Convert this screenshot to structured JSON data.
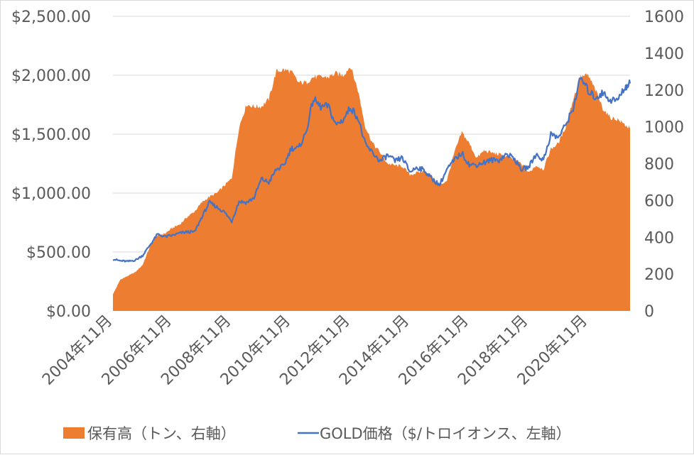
{
  "chart_data": {
    "type": "area+line",
    "title": "",
    "xlabel": "",
    "ylabel": "",
    "x_tick_labels": [
      "2004年11月",
      "2006年11月",
      "2008年11月",
      "2010年11月",
      "2012年11月",
      "2014年11月",
      "2016年11月",
      "2018年11月",
      "2020年11月"
    ],
    "x_range": [
      "2004-11",
      "2022-04"
    ],
    "left_axis": {
      "min": 0,
      "max": 2500,
      "ticks": [
        0,
        500,
        1000,
        1500,
        2000,
        2500
      ],
      "tick_labels": [
        "$0.00",
        "$500.00",
        "$1,000.00",
        "$1,500.00",
        "$2,000.00",
        "$2,500.00"
      ]
    },
    "right_axis": {
      "min": 0,
      "max": 1600,
      "ticks": [
        0,
        200,
        400,
        600,
        800,
        1000,
        1200,
        1400,
        1600
      ],
      "tick_labels": [
        "0",
        "200",
        "400",
        "600",
        "800",
        "1000",
        "1200",
        "1400",
        "1600"
      ]
    },
    "grid": "horizontal",
    "legend_position": "bottom",
    "colors": {
      "holdings": "#ED7D31",
      "gold": "#4472C4",
      "grid": "#d9d9d9",
      "text": "#595959"
    },
    "series": [
      {
        "name": "保有高（トン、右軸）",
        "axis": "right",
        "kind": "area",
        "x": [
          "2004-11",
          "2005-02",
          "2005-05",
          "2005-08",
          "2005-11",
          "2006-02",
          "2006-05",
          "2006-08",
          "2006-11",
          "2007-02",
          "2007-05",
          "2007-08",
          "2007-11",
          "2008-02",
          "2008-05",
          "2008-08",
          "2008-11",
          "2009-02",
          "2009-05",
          "2009-08",
          "2009-11",
          "2010-02",
          "2010-05",
          "2010-08",
          "2010-11",
          "2011-02",
          "2011-05",
          "2011-08",
          "2011-11",
          "2012-02",
          "2012-05",
          "2012-08",
          "2012-11",
          "2013-02",
          "2013-05",
          "2013-08",
          "2013-11",
          "2014-02",
          "2014-05",
          "2014-08",
          "2014-11",
          "2015-02",
          "2015-05",
          "2015-08",
          "2015-11",
          "2016-02",
          "2016-05",
          "2016-08",
          "2016-11",
          "2017-02",
          "2017-05",
          "2017-08",
          "2017-11",
          "2018-02",
          "2018-05",
          "2018-08",
          "2018-11",
          "2019-02",
          "2019-05",
          "2019-08",
          "2019-11",
          "2020-02",
          "2020-05",
          "2020-08",
          "2020-11",
          "2021-02",
          "2021-05",
          "2021-08",
          "2021-11",
          "2022-02",
          "2022-04"
        ],
        "values": [
          90,
          170,
          190,
          210,
          250,
          350,
          410,
          420,
          450,
          470,
          510,
          540,
          590,
          620,
          640,
          680,
          720,
          1000,
          1120,
          1110,
          1110,
          1150,
          1300,
          1310,
          1300,
          1240,
          1240,
          1270,
          1270,
          1270,
          1290,
          1280,
          1330,
          1200,
          1000,
          910,
          860,
          800,
          790,
          785,
          740,
          750,
          760,
          730,
          680,
          710,
          860,
          970,
          910,
          830,
          870,
          860,
          850,
          840,
          820,
          800,
          750,
          790,
          770,
          880,
          910,
          1000,
          1150,
          1270,
          1280,
          1200,
          1100,
          1050,
          1040,
          1010,
          990
        ]
      },
      {
        "name": "GOLD価格（$/トロイオンス、左軸）",
        "axis": "left",
        "kind": "line",
        "x": [
          "2004-11",
          "2005-02",
          "2005-05",
          "2005-08",
          "2005-11",
          "2006-02",
          "2006-05",
          "2006-08",
          "2006-11",
          "2007-02",
          "2007-05",
          "2007-08",
          "2007-11",
          "2008-02",
          "2008-05",
          "2008-08",
          "2008-11",
          "2009-02",
          "2009-05",
          "2009-08",
          "2009-11",
          "2010-02",
          "2010-05",
          "2010-08",
          "2010-11",
          "2011-02",
          "2011-05",
          "2011-08",
          "2011-11",
          "2012-02",
          "2012-05",
          "2012-08",
          "2012-11",
          "2013-02",
          "2013-05",
          "2013-08",
          "2013-11",
          "2014-02",
          "2014-05",
          "2014-08",
          "2014-11",
          "2015-02",
          "2015-05",
          "2015-08",
          "2015-11",
          "2016-02",
          "2016-05",
          "2016-08",
          "2016-11",
          "2017-02",
          "2017-05",
          "2017-08",
          "2017-11",
          "2018-02",
          "2018-05",
          "2018-08",
          "2018-11",
          "2019-02",
          "2019-05",
          "2019-08",
          "2019-11",
          "2020-02",
          "2020-05",
          "2020-08",
          "2020-11",
          "2021-02",
          "2021-05",
          "2021-08",
          "2021-11",
          "2022-02",
          "2022-04"
        ],
        "values": [
          440,
          425,
          420,
          430,
          470,
          560,
          650,
          630,
          640,
          660,
          670,
          670,
          800,
          920,
          880,
          840,
          760,
          930,
          920,
          960,
          1120,
          1090,
          1200,
          1230,
          1380,
          1380,
          1510,
          1800,
          1730,
          1740,
          1580,
          1620,
          1730,
          1640,
          1410,
          1340,
          1270,
          1320,
          1270,
          1300,
          1180,
          1220,
          1190,
          1120,
          1070,
          1200,
          1280,
          1340,
          1240,
          1240,
          1260,
          1280,
          1280,
          1330,
          1300,
          1200,
          1220,
          1330,
          1280,
          1500,
          1470,
          1580,
          1720,
          1980,
          1870,
          1810,
          1850,
          1790,
          1790,
          1900,
          1930
        ]
      }
    ]
  }
}
